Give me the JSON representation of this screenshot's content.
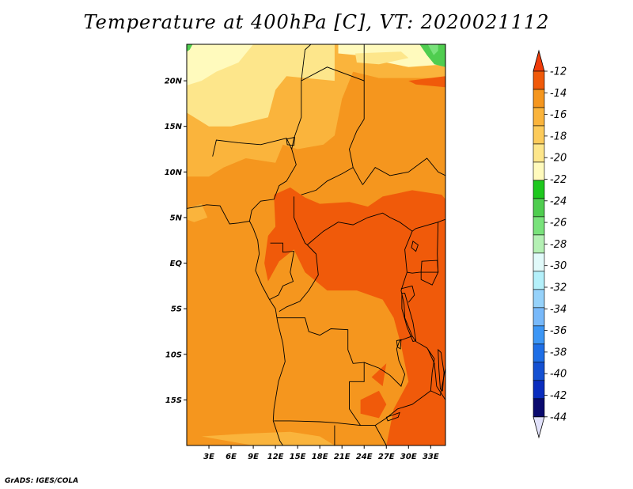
{
  "title": "Temperature at 400hPa [C], VT: 2020021112",
  "credit": "GrADS: IGES/COLA",
  "map": {
    "lon_range": [
      0,
      35
    ],
    "lat_range": [
      -20,
      24
    ],
    "lon_ticks": [
      {
        "value": 3,
        "label": "3E"
      },
      {
        "value": 6,
        "label": "6E"
      },
      {
        "value": 9,
        "label": "9E"
      },
      {
        "value": 12,
        "label": "12E"
      },
      {
        "value": 15,
        "label": "15E"
      },
      {
        "value": 18,
        "label": "18E"
      },
      {
        "value": 21,
        "label": "21E"
      },
      {
        "value": 24,
        "label": "24E"
      },
      {
        "value": 27,
        "label": "27E"
      },
      {
        "value": 30,
        "label": "30E"
      },
      {
        "value": 33,
        "label": "33E"
      }
    ],
    "lat_ticks": [
      {
        "value": 20,
        "label": "20N"
      },
      {
        "value": 15,
        "label": "15N"
      },
      {
        "value": 10,
        "label": "10N"
      },
      {
        "value": 5,
        "label": "5N"
      },
      {
        "value": 0,
        "label": "EQ"
      },
      {
        "value": -5,
        "label": "5S"
      },
      {
        "value": -10,
        "label": "10S"
      },
      {
        "value": -15,
        "label": "15S"
      }
    ],
    "field_colors": {
      "lt_m14": "#f05a0a",
      "m14_m16": "#f5961e",
      "m16_m18": "#fab43c",
      "m18_m20": "#fde68b",
      "m20_m22": "#fffabd",
      "m22_m24": "#4fcd4f",
      "m24_m26": "#79e27b"
    },
    "border_color": "#000000"
  },
  "colorbar": {
    "labels": [
      "-12",
      "-14",
      "-16",
      "-18",
      "-20",
      "-22",
      "-24",
      "-26",
      "-28",
      "-30",
      "-32",
      "-34",
      "-36",
      "-38",
      "-40",
      "-42",
      "-44"
    ],
    "colors": [
      "#f05a0a",
      "#f5961e",
      "#fab43c",
      "#fccb5b",
      "#fde68b",
      "#fffabd",
      "#1ec81e",
      "#4fcd4f",
      "#79e27b",
      "#b4f0b4",
      "#e1fafa",
      "#b4f0fa",
      "#96d2fa",
      "#78b9fa",
      "#3c96f5",
      "#1e6ee6",
      "#1450d2",
      "#0a2dbe",
      "#0a0a6e"
    ],
    "top_color": "#f03c0a",
    "bottom_color": "#e1e1fa"
  }
}
